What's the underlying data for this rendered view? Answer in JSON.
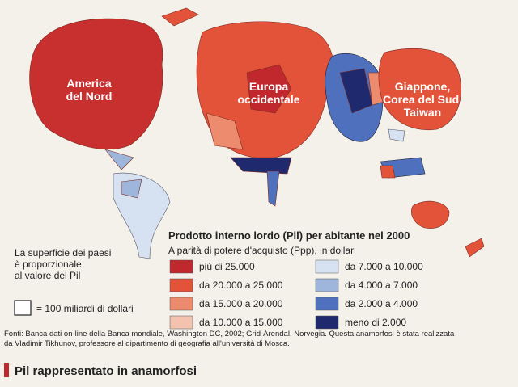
{
  "map_labels": [
    {
      "lines": [
        "America",
        "del Nord"
      ]
    },
    {
      "lines": [
        "Europa",
        "occidentale"
      ]
    },
    {
      "lines": [
        "Giappone,",
        "Corea del Sud,",
        "Taiwan"
      ]
    }
  ],
  "legend": {
    "title": "Prodotto interno lordo (Pil) per abitante nel 2000",
    "subtitle": "A parità di potere d'acquisto (Ppp), in dollari",
    "classes": [
      {
        "label": "più di 25.000",
        "color": "#c0282e"
      },
      {
        "label": "da 20.000 a 25.000",
        "color": "#e2533a"
      },
      {
        "label": "da 15.000 a 20.000",
        "color": "#ec8b6e"
      },
      {
        "label": "da 10.000 a 15.000",
        "color": "#f3c3b0"
      },
      {
        "label": "da 7.000 a 10.000",
        "color": "#d6e2f1"
      },
      {
        "label": "da 4.000 a 7.000",
        "color": "#9fb6dc"
      },
      {
        "label": "da 2.000 a 4.000",
        "color": "#4e70bd"
      },
      {
        "label": "meno di 2.000",
        "color": "#1f2a6e"
      }
    ]
  },
  "note": {
    "lines": [
      "La superficie dei paesi",
      "è proporzionale",
      "al valore del Pil"
    ],
    "scale": "= 100 miliardi di dollari"
  },
  "source": [
    "Fonti: Banca dati on-line della Banca mondiale, Washington DC, 2002; Grid-Arendal, Norvegia. Questa anamorfosi è stata realizzata",
    "da Vladimir Tikhunov, professore al dipartimento di geografia all'università di Mosca."
  ],
  "footer": "Pil rappresentato in anamorfosi"
}
